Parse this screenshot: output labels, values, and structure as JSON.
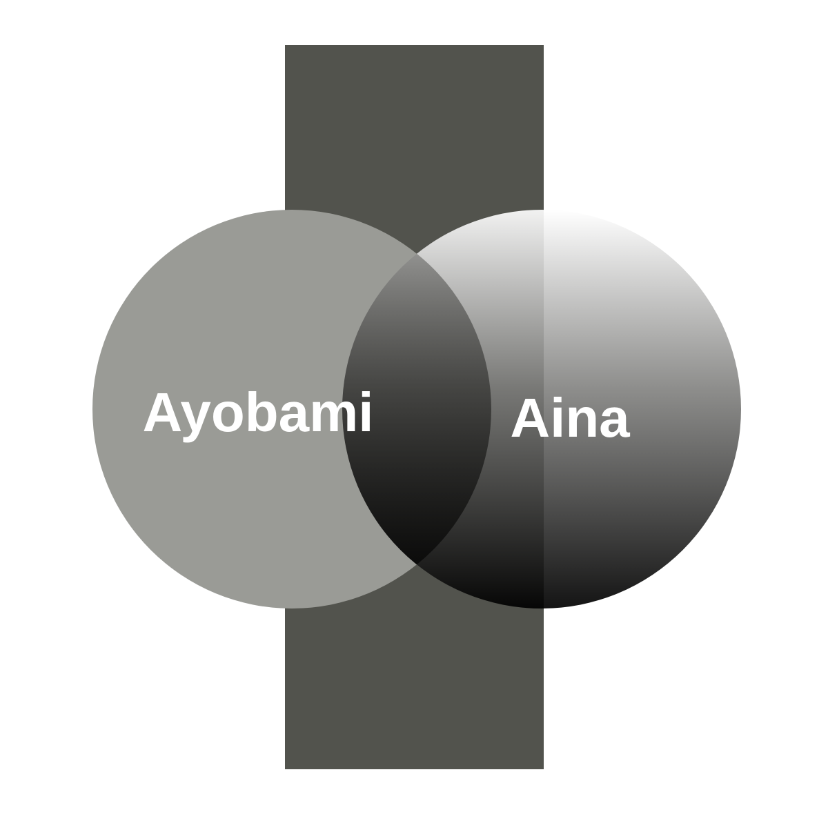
{
  "labels": {
    "left": "Ayobami",
    "right": "Aina"
  },
  "colors": {
    "background": "#ffffff",
    "bar": "#52534d",
    "left_circle": "#9a9b96",
    "right_gradient_top": "#ffffff",
    "right_gradient_bottom": "#000000",
    "label_text": "#ffffff"
  }
}
